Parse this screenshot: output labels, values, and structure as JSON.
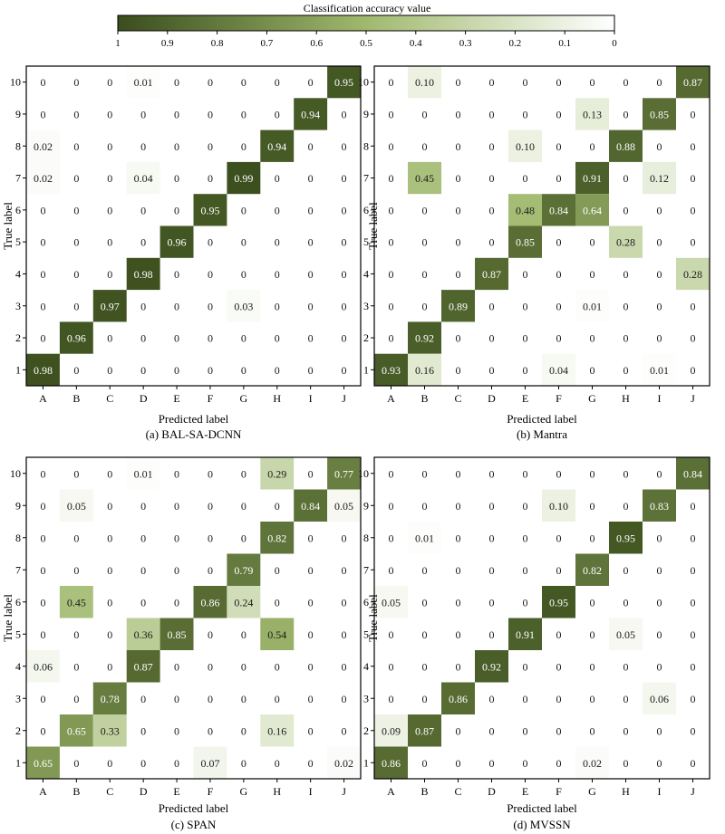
{
  "colorbar": {
    "title": "Classification accuracy value",
    "ticks": [
      "1",
      "0.9",
      "0.8",
      "0.7",
      "0.6",
      "0.5",
      "0.4",
      "0.3",
      "0.2",
      "0.1",
      "0"
    ],
    "color_high": "#3a4d1c",
    "color_low": "#ffffff"
  },
  "chart_data": [
    {
      "type": "heatmap",
      "caption": "(a) BAL-SA-DCNN",
      "xlabel": "Predicted label",
      "ylabel": "True label",
      "x_categories": [
        "A",
        "B",
        "C",
        "D",
        "E",
        "F",
        "G",
        "H",
        "I",
        "J"
      ],
      "y_categories": [
        "10",
        "9",
        "8",
        "7",
        "6",
        "5",
        "4",
        "3",
        "2",
        "1"
      ],
      "value_range": [
        0,
        1
      ],
      "values": [
        [
          "0",
          "0",
          "0",
          "0.01",
          "0",
          "0",
          "0",
          "0",
          "0",
          "0.95"
        ],
        [
          "0",
          "0",
          "0",
          "0",
          "0",
          "0",
          "0",
          "0",
          "0.94",
          "0"
        ],
        [
          "0.02",
          "0",
          "0",
          "0",
          "0",
          "0",
          "0",
          "0.94",
          "0",
          "0"
        ],
        [
          "0.02",
          "0",
          "0",
          "0.04",
          "0",
          "0",
          "0.99",
          "0",
          "0",
          "0"
        ],
        [
          "0",
          "0",
          "0",
          "0",
          "0",
          "0.95",
          "0",
          "0",
          "0",
          "0"
        ],
        [
          "0",
          "0",
          "0",
          "0",
          "0.96",
          "0",
          "0",
          "0",
          "0",
          "0"
        ],
        [
          "0",
          "0",
          "0",
          "0.98",
          "0",
          "0",
          "0",
          "0",
          "0",
          "0"
        ],
        [
          "0",
          "0",
          "0.97",
          "0",
          "0",
          "0",
          "0.03",
          "0",
          "0",
          "0"
        ],
        [
          "0",
          "0.96",
          "0",
          "0",
          "0",
          "0",
          "0",
          "0",
          "0",
          "0"
        ],
        [
          "0.98",
          "0",
          "0",
          "0",
          "0",
          "0",
          "0",
          "0",
          "0",
          "0"
        ]
      ]
    },
    {
      "type": "heatmap",
      "caption": "(b) Mantra",
      "xlabel": "Predicted label",
      "ylabel": "True label",
      "x_categories": [
        "A",
        "B",
        "C",
        "D",
        "E",
        "F",
        "G",
        "H",
        "I",
        "J"
      ],
      "y_categories": [
        "10",
        "9",
        "8",
        "7",
        "6",
        "5",
        "4",
        "3",
        "2",
        "1"
      ],
      "value_range": [
        0,
        1
      ],
      "values": [
        [
          "0",
          "0.10",
          "0",
          "0",
          "0",
          "0",
          "0",
          "0",
          "0",
          "0.87"
        ],
        [
          "0",
          "0",
          "0",
          "0",
          "0",
          "0",
          "0.13",
          "0",
          "0.85",
          "0"
        ],
        [
          "0",
          "0",
          "0",
          "0",
          "0.10",
          "0",
          "0",
          "0.88",
          "0",
          "0"
        ],
        [
          "0",
          "0.45",
          "0",
          "0",
          "0",
          "0",
          "0.91",
          "0",
          "0.12",
          "0"
        ],
        [
          "0",
          "0",
          "0",
          "0",
          "0.48",
          "0.84",
          "0.64",
          "0",
          "0",
          "0"
        ],
        [
          "0",
          "0",
          "0",
          "0",
          "0.85",
          "0",
          "0",
          "0.28",
          "0",
          "0"
        ],
        [
          "0",
          "0",
          "0",
          "0.87",
          "0",
          "0",
          "0",
          "0",
          "0",
          "0.28"
        ],
        [
          "0",
          "0",
          "0.89",
          "0",
          "0",
          "0",
          "0.01",
          "0",
          "0",
          "0"
        ],
        [
          "0",
          "0.92",
          "0",
          "0",
          "0",
          "0",
          "0",
          "0",
          "0",
          "0"
        ],
        [
          "0.93",
          "0.16",
          "0",
          "0",
          "0",
          "0.04",
          "0",
          "0",
          "0.01",
          "0"
        ]
      ]
    },
    {
      "type": "heatmap",
      "caption": "(c) SPAN",
      "xlabel": "Predicted label",
      "ylabel": "True label",
      "x_categories": [
        "A",
        "B",
        "C",
        "D",
        "E",
        "F",
        "G",
        "H",
        "I",
        "J"
      ],
      "y_categories": [
        "10",
        "9",
        "8",
        "7",
        "6",
        "5",
        "4",
        "3",
        "2",
        "1"
      ],
      "value_range": [
        0,
        1
      ],
      "values": [
        [
          "0",
          "0",
          "0",
          "0.01",
          "0",
          "0",
          "0",
          "0.29",
          "0",
          "0.77"
        ],
        [
          "0",
          "0.05",
          "0",
          "0",
          "0",
          "0",
          "0",
          "0",
          "0.84",
          "0.05"
        ],
        [
          "0",
          "0",
          "0",
          "0",
          "0",
          "0",
          "0",
          "0.82",
          "0",
          "0"
        ],
        [
          "0",
          "0",
          "0",
          "0",
          "0",
          "0",
          "0.79",
          "0",
          "0",
          "0"
        ],
        [
          "0",
          "0.45",
          "0",
          "0",
          "0",
          "0.86",
          "0.24",
          "0",
          "0",
          "0"
        ],
        [
          "0",
          "0",
          "0",
          "0.36",
          "0.85",
          "0",
          "0",
          "0.54",
          "0",
          "0"
        ],
        [
          "0.06",
          "0",
          "0",
          "0.87",
          "0",
          "0",
          "0",
          "0",
          "0",
          "0"
        ],
        [
          "0",
          "0",
          "0.78",
          "0",
          "0",
          "0",
          "0",
          "0",
          "0",
          "0"
        ],
        [
          "0",
          "0.65",
          "0.33",
          "0",
          "0",
          "0",
          "0",
          "0.16",
          "0",
          "0"
        ],
        [
          "0.65",
          "0",
          "0",
          "0",
          "0",
          "0.07",
          "0",
          "0",
          "0",
          "0.02"
        ]
      ]
    },
    {
      "type": "heatmap",
      "caption": "(d) MVSSN",
      "xlabel": "Predicted label",
      "ylabel": "True label",
      "x_categories": [
        "A",
        "B",
        "C",
        "D",
        "E",
        "F",
        "G",
        "H",
        "I",
        "J"
      ],
      "y_categories": [
        "10",
        "9",
        "8",
        "7",
        "6",
        "5",
        "4",
        "3",
        "2",
        "1"
      ],
      "value_range": [
        0,
        1
      ],
      "values": [
        [
          "0",
          "0",
          "0",
          "0",
          "0",
          "0",
          "0",
          "0",
          "0",
          "0.84"
        ],
        [
          "0",
          "0",
          "0",
          "0",
          "0",
          "0.10",
          "0",
          "0",
          "0.83",
          "0"
        ],
        [
          "0",
          "0.01",
          "0",
          "0",
          "0",
          "0",
          "0",
          "0.95",
          "0",
          "0"
        ],
        [
          "0",
          "0",
          "0",
          "0",
          "0",
          "0",
          "0.82",
          "0",
          "0",
          "0"
        ],
        [
          "0.05",
          "0",
          "0",
          "0",
          "0",
          "0.95",
          "0",
          "0",
          "0",
          "0"
        ],
        [
          "0",
          "0",
          "0",
          "0",
          "0.91",
          "0",
          "0",
          "0.05",
          "0",
          "0"
        ],
        [
          "0",
          "0",
          "0",
          "0.92",
          "0",
          "0",
          "0",
          "0",
          "0",
          "0"
        ],
        [
          "0",
          "0",
          "0.86",
          "0",
          "0",
          "0",
          "0",
          "0",
          "0.06",
          "0"
        ],
        [
          "0.09",
          "0.87",
          "0",
          "0",
          "0",
          "0",
          "0",
          "0",
          "0",
          "0"
        ],
        [
          "0.86",
          "0",
          "0",
          "0",
          "0",
          "0",
          "0.02",
          "0",
          "0",
          "0"
        ]
      ]
    }
  ]
}
